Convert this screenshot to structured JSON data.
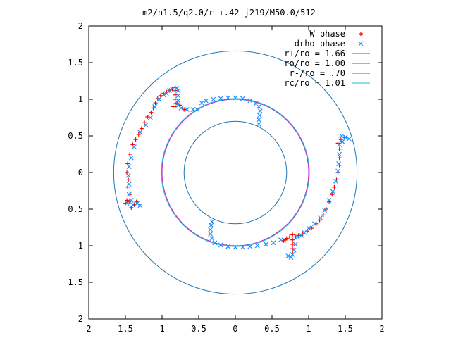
{
  "chart_data": {
    "type": "scatter",
    "title": "m2/n1.5/q2.0/r-+.42-j219/M50.0/512",
    "xlabel": "",
    "ylabel": "",
    "xlim": [
      -2,
      2
    ],
    "ylim": [
      -2,
      2
    ],
    "x_ticks": [
      -2,
      -1.5,
      -1,
      -0.5,
      0,
      0.5,
      1,
      1.5,
      2
    ],
    "y_ticks": [
      -2,
      -1.5,
      -1,
      -0.5,
      0,
      0.5,
      1,
      1.5,
      2
    ],
    "x_tick_labels": [
      "2",
      "1.5",
      "1",
      "0.5",
      "0",
      "0.5",
      "1",
      "1.5",
      "2"
    ],
    "y_tick_labels": [
      "2",
      "1.5",
      "1",
      "0.5",
      "0",
      "0.5",
      "1",
      "1.5",
      "2"
    ],
    "legend_position": "top-right",
    "grid": false,
    "series": [
      {
        "name": "W phase",
        "marker": "plus",
        "color": "#ff0000",
        "points": [
          [
            -1.35,
            -0.4
          ],
          [
            -1.45,
            -0.4
          ],
          [
            -1.5,
            -0.42
          ],
          [
            -1.42,
            -0.48
          ],
          [
            -1.38,
            -0.44
          ],
          [
            -1.48,
            -0.38
          ],
          [
            -1.44,
            -0.3
          ],
          [
            -1.47,
            -0.2
          ],
          [
            -1.46,
            -0.1
          ],
          [
            -1.48,
            0.0
          ],
          [
            -1.47,
            0.12
          ],
          [
            -1.44,
            0.25
          ],
          [
            -1.4,
            0.38
          ],
          [
            -1.36,
            0.45
          ],
          [
            -1.32,
            0.52
          ],
          [
            -1.28,
            0.6
          ],
          [
            -1.24,
            0.68
          ],
          [
            -1.2,
            0.76
          ],
          [
            -1.15,
            0.82
          ],
          [
            -1.12,
            0.88
          ],
          [
            -1.09,
            0.95
          ],
          [
            -1.06,
            1.01
          ],
          [
            -1.02,
            1.05
          ],
          [
            -0.98,
            1.08
          ],
          [
            -0.94,
            1.1
          ],
          [
            -0.9,
            1.12
          ],
          [
            -0.86,
            1.14
          ],
          [
            -0.82,
            1.16
          ],
          [
            -0.82,
            1.12
          ],
          [
            -0.82,
            1.06
          ],
          [
            -0.82,
            1.0
          ],
          [
            -0.82,
            0.94
          ],
          [
            -0.82,
            0.9
          ],
          [
            -0.85,
            0.9
          ],
          [
            -0.8,
            0.95
          ],
          [
            -0.76,
            0.92
          ],
          [
            -0.72,
            0.88
          ],
          [
            -0.7,
            0.86
          ],
          [
            1.49,
            0.48
          ],
          [
            1.44,
            0.45
          ],
          [
            1.4,
            0.4
          ],
          [
            1.42,
            0.32
          ],
          [
            1.42,
            0.2
          ],
          [
            1.42,
            0.1
          ],
          [
            1.4,
            0.0
          ],
          [
            1.38,
            -0.1
          ],
          [
            1.35,
            -0.2
          ],
          [
            1.32,
            -0.3
          ],
          [
            1.28,
            -0.4
          ],
          [
            1.24,
            -0.5
          ],
          [
            1.2,
            -0.58
          ],
          [
            1.15,
            -0.65
          ],
          [
            1.1,
            -0.7
          ],
          [
            1.04,
            -0.76
          ],
          [
            0.98,
            -0.8
          ],
          [
            0.92,
            -0.84
          ],
          [
            0.86,
            -0.86
          ],
          [
            0.82,
            -0.88
          ],
          [
            0.78,
            -0.85
          ],
          [
            0.78,
            -0.92
          ],
          [
            0.78,
            -0.98
          ],
          [
            0.78,
            -1.04
          ],
          [
            0.78,
            -1.1
          ],
          [
            0.74,
            -0.88
          ],
          [
            0.7,
            -0.9
          ],
          [
            0.68,
            -0.92
          ],
          [
            0.66,
            -0.93
          ]
        ]
      },
      {
        "name": "drho phase",
        "marker": "x",
        "color": "#1e90ff",
        "points": [
          [
            -1.42,
            -0.38
          ],
          [
            -1.48,
            -0.42
          ],
          [
            -1.4,
            -0.44
          ],
          [
            -1.34,
            -0.42
          ],
          [
            -1.3,
            -0.45
          ],
          [
            -1.45,
            -0.3
          ],
          [
            -1.45,
            -0.16
          ],
          [
            -1.46,
            -0.04
          ],
          [
            -1.45,
            0.08
          ],
          [
            -1.42,
            0.2
          ],
          [
            -1.38,
            0.35
          ],
          [
            -1.3,
            0.55
          ],
          [
            -1.22,
            0.65
          ],
          [
            -1.16,
            0.75
          ],
          [
            -1.1,
            0.9
          ],
          [
            -1.04,
            1.0
          ],
          [
            -0.98,
            1.06
          ],
          [
            -0.94,
            1.08
          ],
          [
            -0.9,
            1.12
          ],
          [
            -0.86,
            1.14
          ],
          [
            -0.8,
            1.15
          ],
          [
            -0.78,
            1.12
          ],
          [
            -0.78,
            1.05
          ],
          [
            -0.78,
            0.98
          ],
          [
            -0.78,
            0.92
          ],
          [
            -0.74,
            0.88
          ],
          [
            -0.66,
            0.86
          ],
          [
            -0.58,
            0.86
          ],
          [
            -0.52,
            0.86
          ],
          [
            -0.46,
            0.95
          ],
          [
            -0.4,
            0.98
          ],
          [
            -0.3,
            1.0
          ],
          [
            -0.2,
            1.01
          ],
          [
            -0.1,
            1.02
          ],
          [
            0.0,
            1.02
          ],
          [
            0.1,
            1.01
          ],
          [
            0.2,
            0.98
          ],
          [
            0.28,
            0.94
          ],
          [
            0.32,
            0.9
          ],
          [
            0.34,
            0.84
          ],
          [
            0.33,
            0.78
          ],
          [
            0.32,
            0.72
          ],
          [
            0.32,
            0.66
          ],
          [
            1.45,
            0.5
          ],
          [
            1.5,
            0.48
          ],
          [
            1.55,
            0.46
          ],
          [
            1.46,
            0.42
          ],
          [
            1.42,
            0.38
          ],
          [
            1.42,
            0.25
          ],
          [
            1.41,
            0.12
          ],
          [
            1.4,
            0.02
          ],
          [
            1.37,
            -0.12
          ],
          [
            1.33,
            -0.26
          ],
          [
            1.28,
            -0.38
          ],
          [
            1.22,
            -0.52
          ],
          [
            1.16,
            -0.62
          ],
          [
            1.08,
            -0.7
          ],
          [
            1.0,
            -0.76
          ],
          [
            0.94,
            -0.82
          ],
          [
            0.9,
            -0.86
          ],
          [
            0.85,
            -0.88
          ],
          [
            0.82,
            -0.98
          ],
          [
            0.8,
            -1.06
          ],
          [
            0.78,
            -1.12
          ],
          [
            0.76,
            -1.16
          ],
          [
            0.72,
            -1.14
          ],
          [
            0.62,
            -0.92
          ],
          [
            0.52,
            -0.96
          ],
          [
            0.42,
            -0.98
          ],
          [
            0.3,
            -1.0
          ],
          [
            0.2,
            -1.01
          ],
          [
            0.1,
            -1.02
          ],
          [
            0.0,
            -1.02
          ],
          [
            -0.1,
            -1.01
          ],
          [
            -0.2,
            -0.99
          ],
          [
            -0.28,
            -0.96
          ],
          [
            -0.32,
            -0.9
          ],
          [
            -0.34,
            -0.84
          ],
          [
            -0.34,
            -0.78
          ],
          [
            -0.33,
            -0.72
          ],
          [
            -0.32,
            -0.67
          ]
        ]
      }
    ],
    "circles": [
      {
        "name": "r+/ro = 1.66",
        "radius": 1.66,
        "color": "#1f77b4"
      },
      {
        "name": "ro/ro = 1.00",
        "radius": 1.0,
        "color": "#c020c0"
      },
      {
        "name": "r-/ro = .70",
        "radius": 0.7,
        "color": "#1f77b4"
      },
      {
        "name": "rc/ro = 1.01",
        "radius": 1.01,
        "color": "#22b8d8"
      }
    ]
  }
}
